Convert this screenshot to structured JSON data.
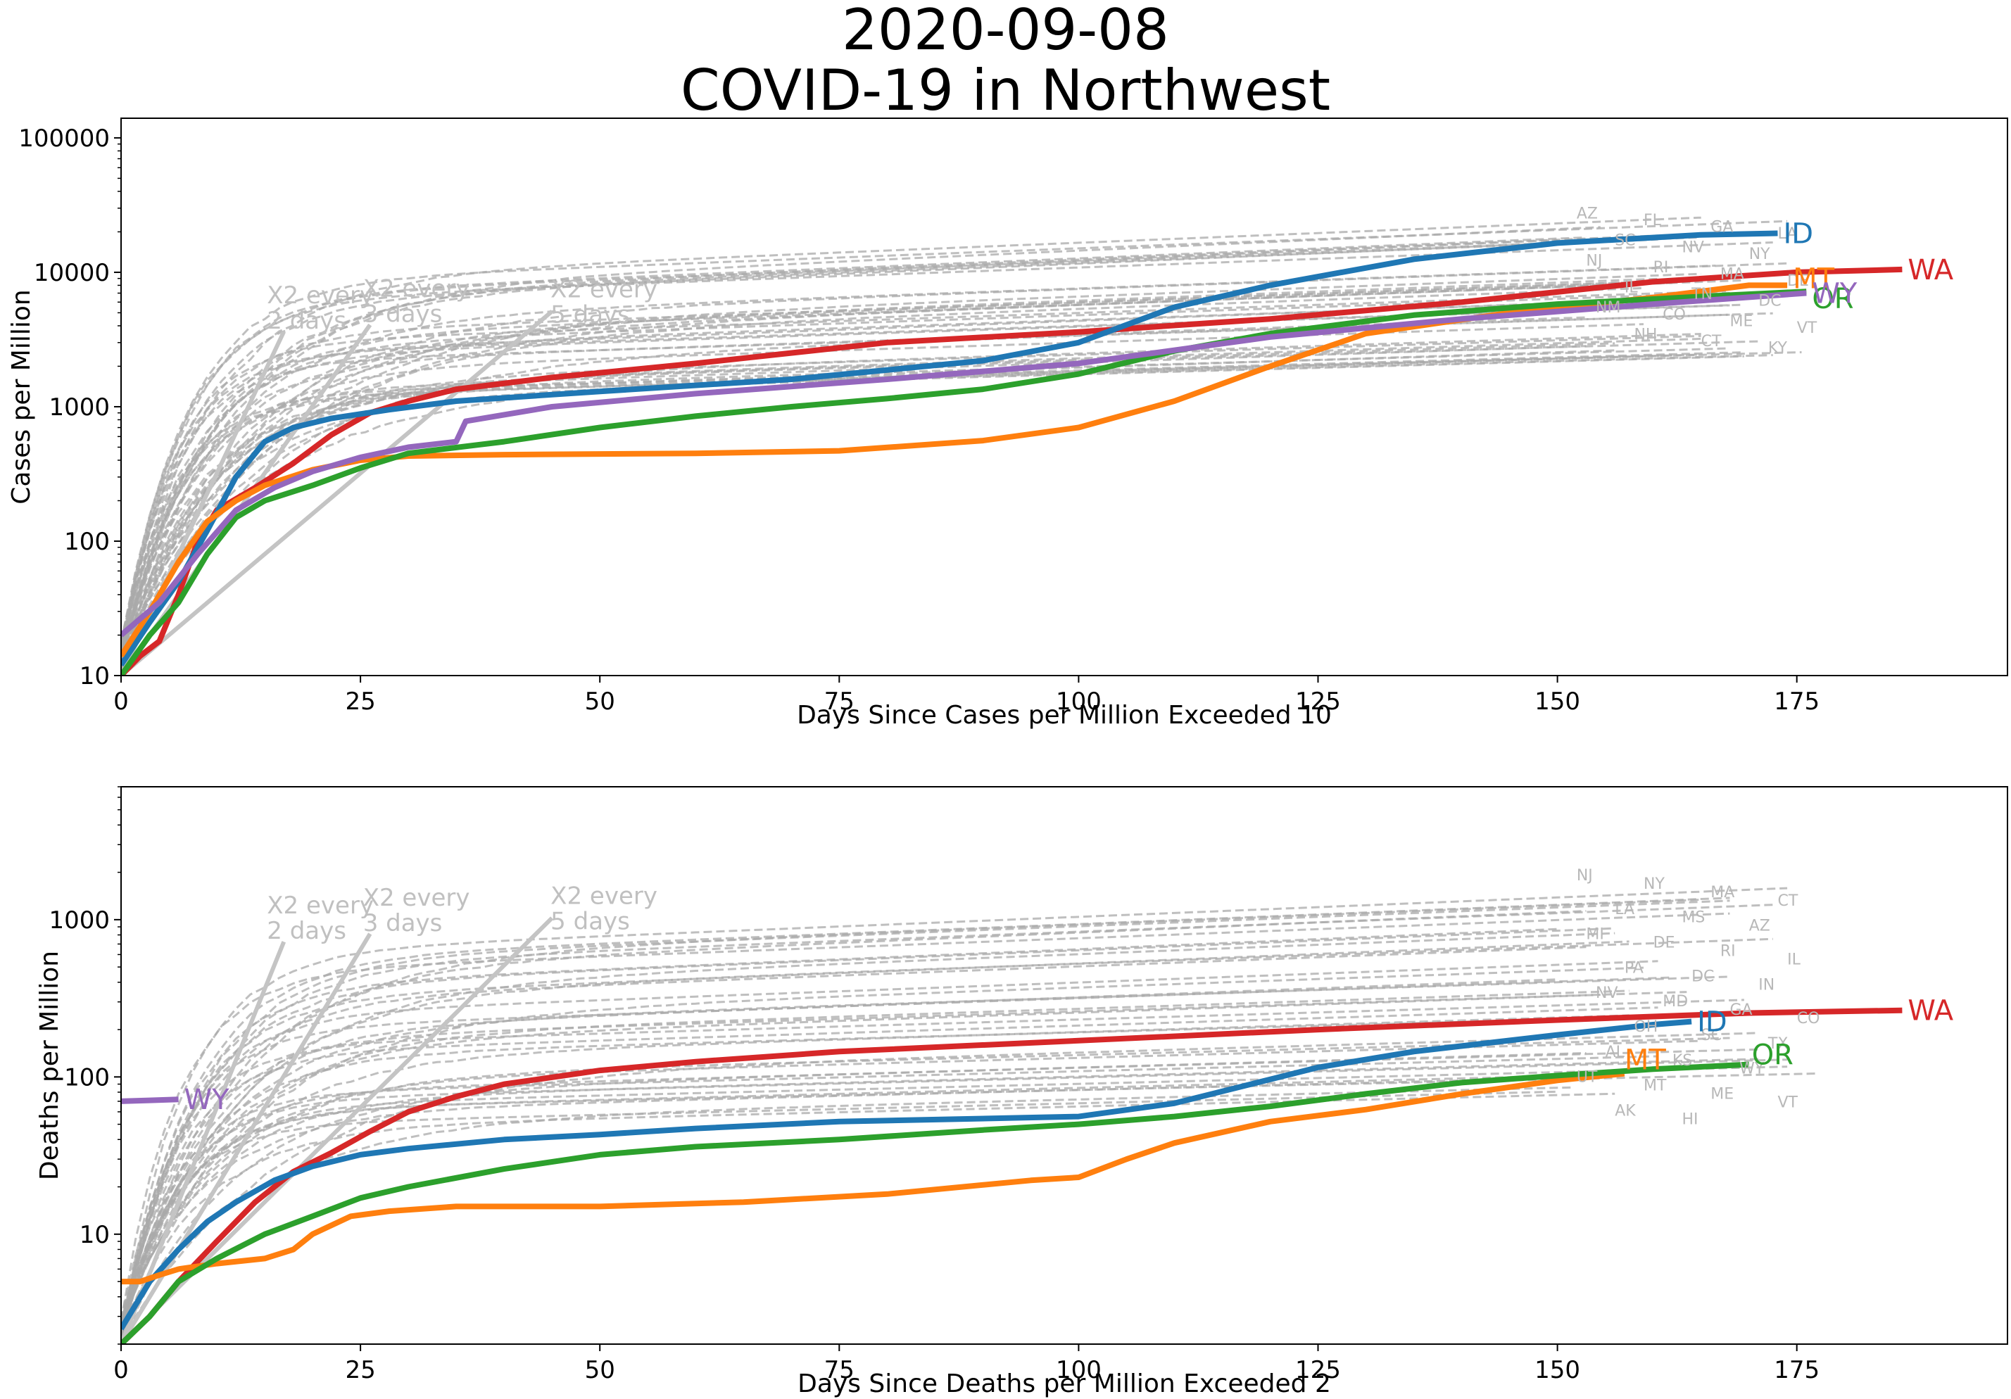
{
  "title": {
    "line1": "2020-09-08",
    "line2": "COVID-19 in Northwest"
  },
  "chart_data": [
    {
      "type": "line",
      "xlabel": "Days Since Cases per Million Exceeded 10",
      "ylabel": "Cases per Million",
      "xlim": [
        0,
        197
      ],
      "ylim": [
        10,
        140000
      ],
      "yscale": "log",
      "xticks": [
        0,
        25,
        50,
        75,
        100,
        125,
        150,
        175
      ],
      "yticks": [
        10,
        100,
        1000,
        10000,
        100000
      ],
      "grid": false,
      "doubling_guides": [
        {
          "label": "X2 every 2 days",
          "lines": [
            "X2 every",
            "2 days"
          ],
          "days": 17
        },
        {
          "label": "X2 every 3 days",
          "lines": [
            "X2 every",
            "3 days"
          ],
          "days": 26
        },
        {
          "label": "X2 every 5 days",
          "lines": [
            "X2 every",
            "5 days"
          ],
          "days": 45
        }
      ],
      "highlighted_series": [
        {
          "name": "WA",
          "color": "#d62728",
          "points": [
            [
              0,
              10
            ],
            [
              2,
              14
            ],
            [
              4,
              18
            ],
            [
              6,
              40
            ],
            [
              8,
              100
            ],
            [
              10,
              170
            ],
            [
              14,
              250
            ],
            [
              18,
              380
            ],
            [
              22,
              620
            ],
            [
              26,
              900
            ],
            [
              30,
              1100
            ],
            [
              35,
              1350
            ],
            [
              45,
              1650
            ],
            [
              60,
              2100
            ],
            [
              80,
              3000
            ],
            [
              100,
              3600
            ],
            [
              120,
              4500
            ],
            [
              140,
              6000
            ],
            [
              160,
              8500
            ],
            [
              175,
              10000
            ],
            [
              186,
              10500
            ]
          ]
        },
        {
          "name": "ID",
          "color": "#1f77b4",
          "points": [
            [
              0,
              12
            ],
            [
              3,
              25
            ],
            [
              6,
              50
            ],
            [
              9,
              120
            ],
            [
              12,
              300
            ],
            [
              15,
              550
            ],
            [
              18,
              700
            ],
            [
              22,
              820
            ],
            [
              28,
              950
            ],
            [
              35,
              1100
            ],
            [
              50,
              1300
            ],
            [
              70,
              1600
            ],
            [
              90,
              2200
            ],
            [
              100,
              3000
            ],
            [
              110,
              5500
            ],
            [
              120,
              8000
            ],
            [
              135,
              12500
            ],
            [
              150,
              16500
            ],
            [
              165,
              19000
            ],
            [
              173,
              19500
            ]
          ]
        },
        {
          "name": "MT",
          "color": "#ff7f0e",
          "points": [
            [
              0,
              14
            ],
            [
              3,
              30
            ],
            [
              6,
              70
            ],
            [
              9,
              140
            ],
            [
              12,
              200
            ],
            [
              15,
              260
            ],
            [
              20,
              340
            ],
            [
              25,
              400
            ],
            [
              30,
              430
            ],
            [
              40,
              440
            ],
            [
              60,
              450
            ],
            [
              75,
              470
            ],
            [
              90,
              560
            ],
            [
              100,
              700
            ],
            [
              110,
              1100
            ],
            [
              120,
              2000
            ],
            [
              130,
              3500
            ],
            [
              145,
              5000
            ],
            [
              160,
              6500
            ],
            [
              170,
              8000
            ],
            [
              174,
              8000
            ]
          ]
        },
        {
          "name": "OR",
          "color": "#2ca02c",
          "points": [
            [
              0,
              10
            ],
            [
              3,
              20
            ],
            [
              6,
              35
            ],
            [
              9,
              80
            ],
            [
              12,
              150
            ],
            [
              15,
              200
            ],
            [
              20,
              260
            ],
            [
              25,
              350
            ],
            [
              30,
              450
            ],
            [
              40,
              550
            ],
            [
              50,
              700
            ],
            [
              60,
              850
            ],
            [
              70,
              1000
            ],
            [
              80,
              1150
            ],
            [
              90,
              1350
            ],
            [
              100,
              1750
            ],
            [
              110,
              2600
            ],
            [
              120,
              3500
            ],
            [
              135,
              4800
            ],
            [
              150,
              5800
            ],
            [
              165,
              6600
            ],
            [
              176,
              7200
            ]
          ]
        },
        {
          "name": "WY",
          "color": "#9467bd",
          "points": [
            [
              0,
              20
            ],
            [
              4,
              35
            ],
            [
              8,
              80
            ],
            [
              12,
              170
            ],
            [
              16,
              250
            ],
            [
              20,
              330
            ],
            [
              25,
              420
            ],
            [
              30,
              500
            ],
            [
              35,
              550
            ],
            [
              36,
              780
            ],
            [
              45,
              1000
            ],
            [
              60,
              1250
            ],
            [
              80,
              1600
            ],
            [
              100,
              2100
            ],
            [
              120,
              3300
            ],
            [
              140,
              4500
            ],
            [
              160,
              5800
            ],
            [
              176,
              7000
            ]
          ]
        }
      ],
      "state_labels": [
        "AZ",
        "FL",
        "GA",
        "LA",
        "SC",
        "NV",
        "NY",
        "NJ",
        "RI",
        "MA",
        "DE",
        "IL",
        "TN",
        "DC",
        "NM",
        "CO",
        "ME",
        "VT",
        "NH",
        "CT",
        "KY"
      ]
    },
    {
      "type": "line",
      "xlabel": "Days Since Deaths per Million Exceeded 2",
      "ylabel": "Deaths per Million",
      "xlim": [
        0,
        197
      ],
      "ylim": [
        2,
        7000
      ],
      "yscale": "log",
      "xticks": [
        0,
        25,
        50,
        75,
        100,
        125,
        150,
        175
      ],
      "yticks": [
        10,
        100,
        1000
      ],
      "grid": false,
      "doubling_guides": [
        {
          "label": "X2 every 2 days",
          "lines": [
            "X2 every",
            "2 days"
          ],
          "days": 17
        },
        {
          "label": "X2 every 3 days",
          "lines": [
            "X2 every",
            "3 days"
          ],
          "days": 26
        },
        {
          "label": "X2 every 5 days",
          "lines": [
            "X2 every",
            "5 days"
          ],
          "days": 45
        }
      ],
      "highlighted_series": [
        {
          "name": "WA",
          "color": "#d62728",
          "points": [
            [
              0,
              2
            ],
            [
              3,
              3
            ],
            [
              6,
              5
            ],
            [
              10,
              9
            ],
            [
              14,
              16
            ],
            [
              18,
              25
            ],
            [
              22,
              33
            ],
            [
              26,
              45
            ],
            [
              30,
              60
            ],
            [
              35,
              75
            ],
            [
              40,
              90
            ],
            [
              50,
              110
            ],
            [
              60,
              125
            ],
            [
              75,
              145
            ],
            [
              100,
              170
            ],
            [
              125,
              200
            ],
            [
              150,
              230
            ],
            [
              170,
              255
            ],
            [
              186,
              265
            ]
          ]
        },
        {
          "name": "ID",
          "color": "#1f77b4",
          "points": [
            [
              0,
              2.5
            ],
            [
              3,
              5
            ],
            [
              6,
              8
            ],
            [
              9,
              12
            ],
            [
              12,
              16
            ],
            [
              16,
              22
            ],
            [
              20,
              27
            ],
            [
              25,
              32
            ],
            [
              30,
              35
            ],
            [
              40,
              40
            ],
            [
              50,
              43
            ],
            [
              60,
              47
            ],
            [
              75,
              52
            ],
            [
              100,
              56
            ],
            [
              110,
              68
            ],
            [
              118,
              90
            ],
            [
              125,
              115
            ],
            [
              135,
              145
            ],
            [
              150,
              185
            ],
            [
              160,
              215
            ],
            [
              164,
              225
            ]
          ]
        },
        {
          "name": "MT",
          "color": "#ff7f0e",
          "points": [
            [
              0,
              5
            ],
            [
              2,
              5
            ],
            [
              4,
              5.5
            ],
            [
              6,
              6
            ],
            [
              10,
              6.5
            ],
            [
              15,
              7
            ],
            [
              18,
              8
            ],
            [
              20,
              10
            ],
            [
              24,
              13
            ],
            [
              28,
              14
            ],
            [
              35,
              15
            ],
            [
              50,
              15
            ],
            [
              65,
              16
            ],
            [
              80,
              18
            ],
            [
              95,
              22
            ],
            [
              100,
              23
            ],
            [
              105,
              30
            ],
            [
              110,
              38
            ],
            [
              120,
              52
            ],
            [
              130,
              62
            ],
            [
              140,
              78
            ],
            [
              150,
              95
            ],
            [
              157,
              105
            ]
          ]
        },
        {
          "name": "OR",
          "color": "#2ca02c",
          "points": [
            [
              0,
              2
            ],
            [
              3,
              3
            ],
            [
              6,
              5
            ],
            [
              10,
              7
            ],
            [
              15,
              10
            ],
            [
              20,
              13
            ],
            [
              25,
              17
            ],
            [
              30,
              20
            ],
            [
              40,
              26
            ],
            [
              50,
              32
            ],
            [
              60,
              36
            ],
            [
              75,
              40
            ],
            [
              90,
              46
            ],
            [
              100,
              50
            ],
            [
              110,
              56
            ],
            [
              120,
              65
            ],
            [
              130,
              78
            ],
            [
              140,
              92
            ],
            [
              150,
              102
            ],
            [
              160,
              112
            ],
            [
              170,
              120
            ]
          ]
        },
        {
          "name": "WY",
          "color": "#9467bd",
          "points": [
            [
              0,
              70
            ],
            [
              3,
              71
            ],
            [
              6,
              72
            ]
          ]
        }
      ],
      "state_labels": [
        "NJ",
        "NY",
        "MA",
        "CT",
        "LA",
        "MS",
        "AZ",
        "MI",
        "DE",
        "RI",
        "IL",
        "PA",
        "DC",
        "IN",
        "NV",
        "MD",
        "GA",
        "CO",
        "OH",
        "SC",
        "TX",
        "AL",
        "KS",
        "WY",
        "UT",
        "MT",
        "ME",
        "VT",
        "AK",
        "HI"
      ]
    }
  ]
}
